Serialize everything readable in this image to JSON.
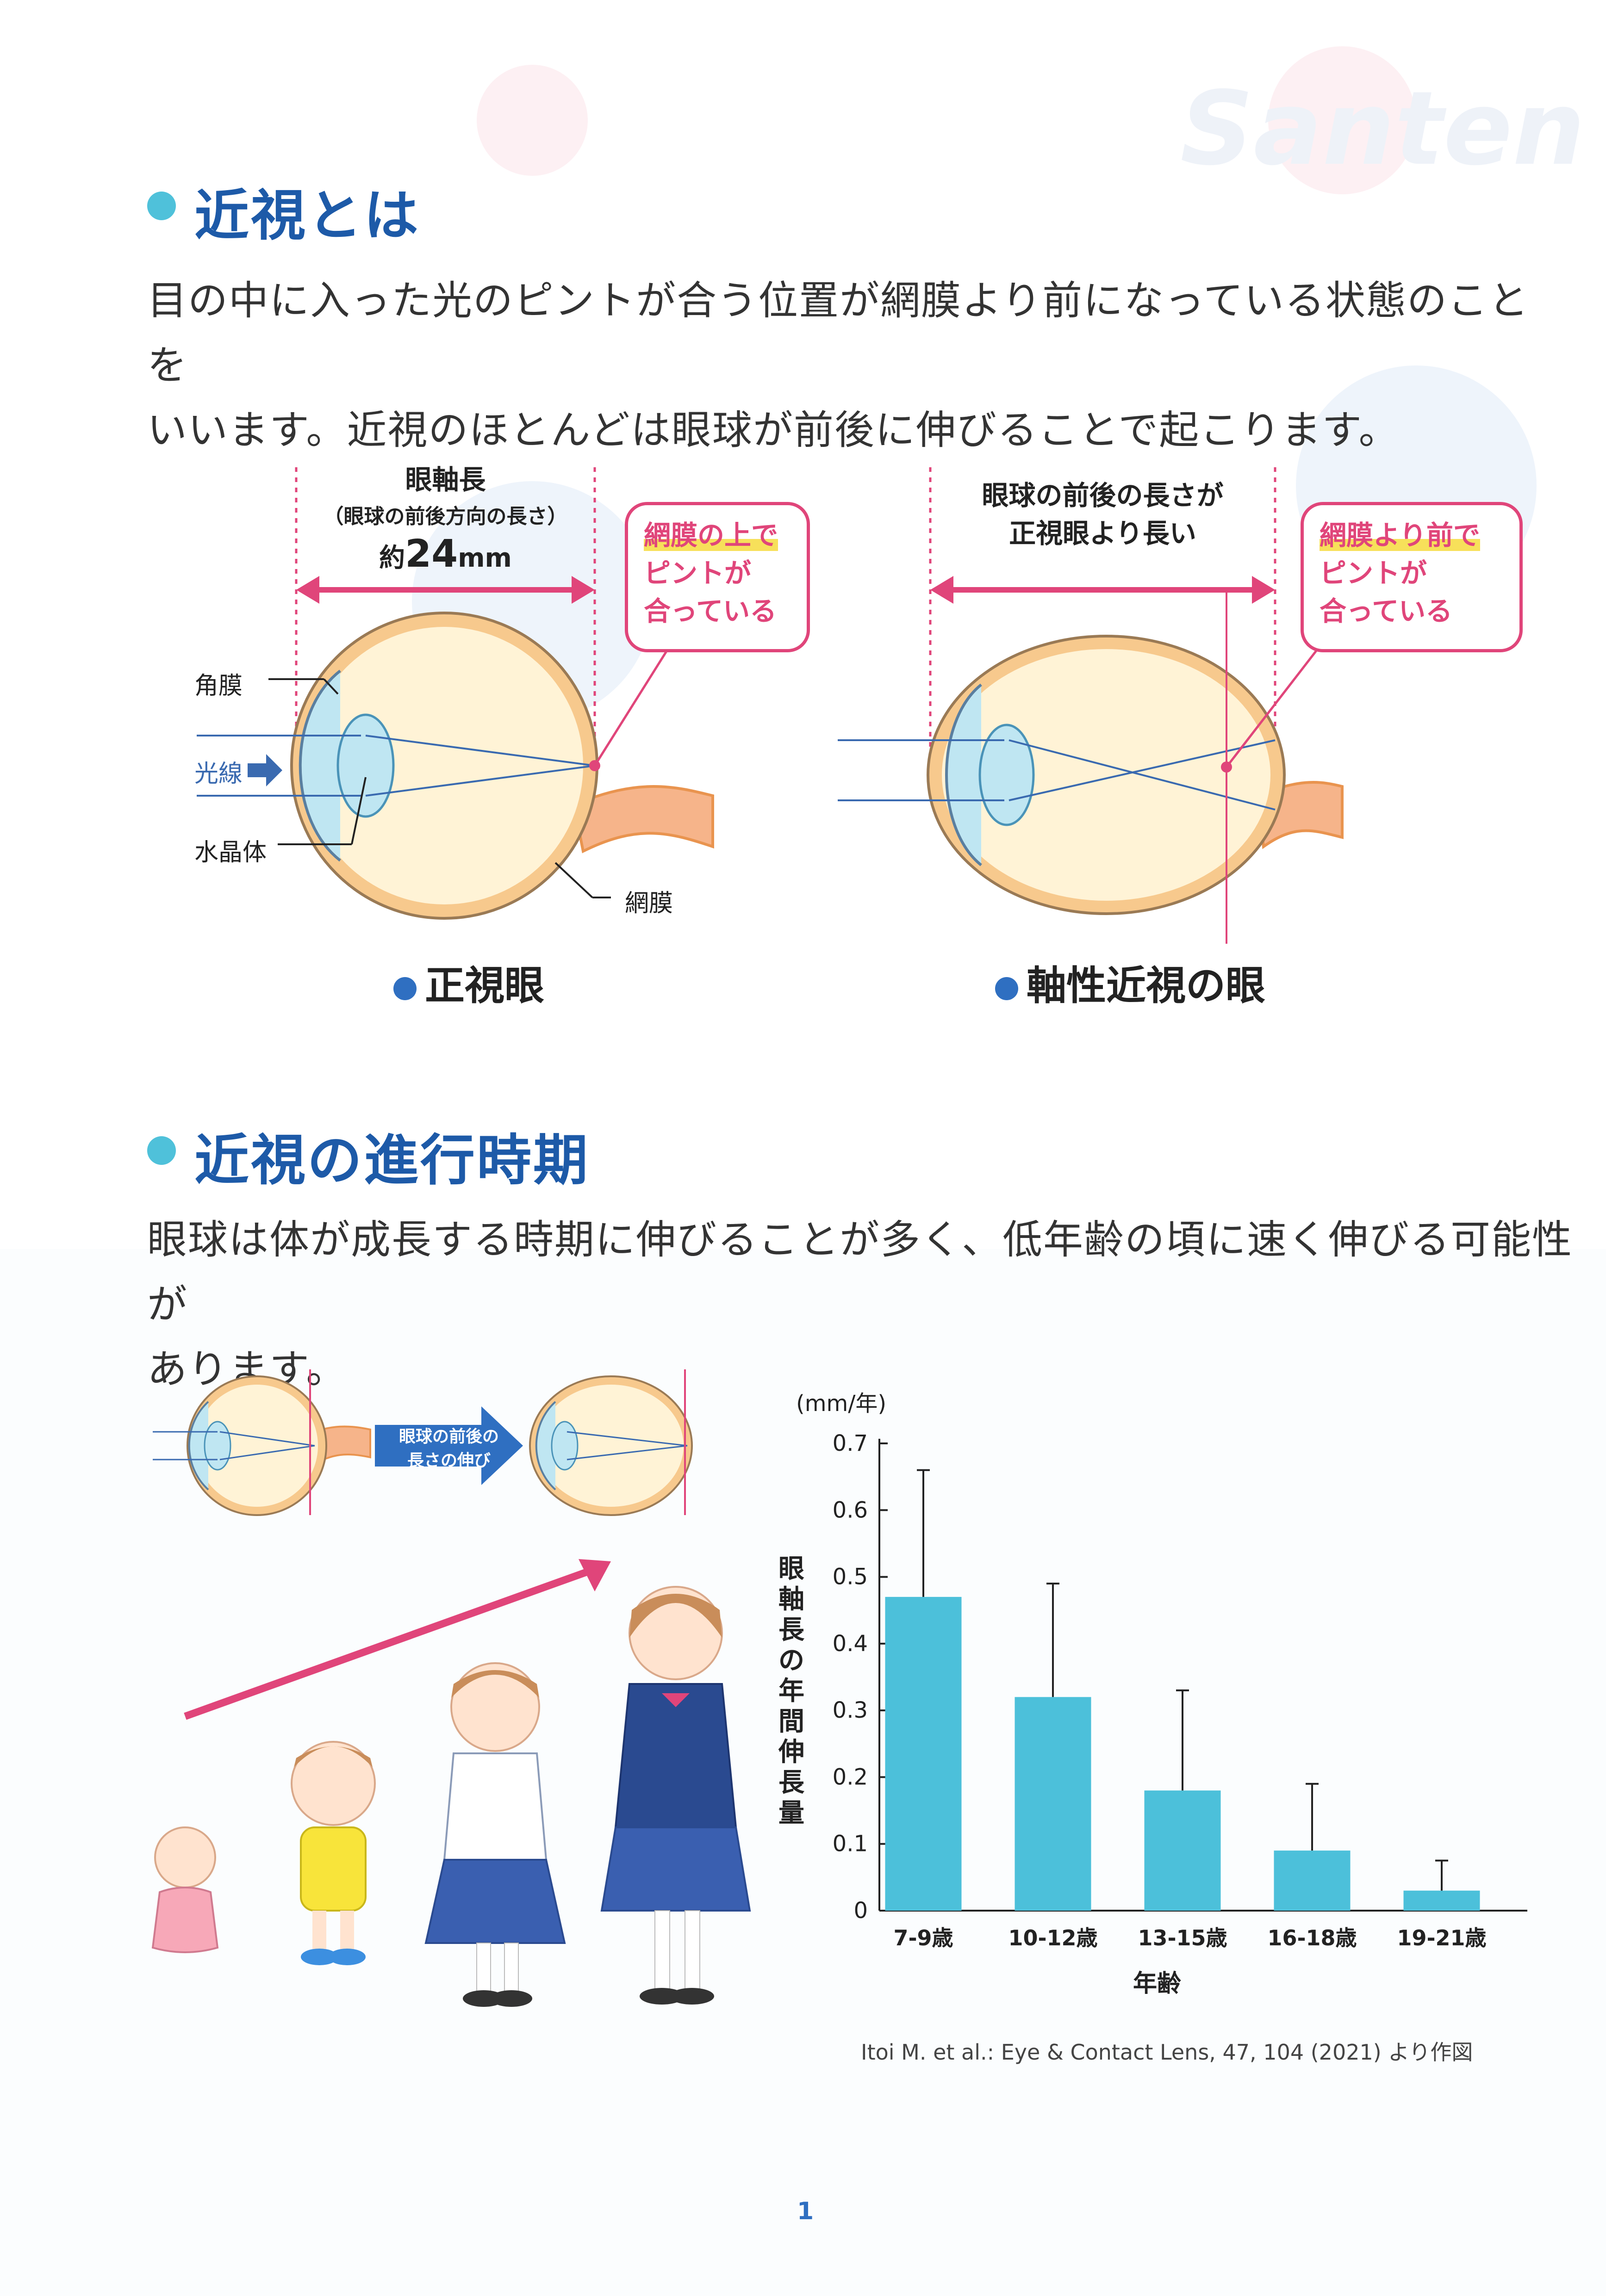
{
  "brand_watermark": "Santen",
  "section1": {
    "heading": "近視とは",
    "para_line1": "目の中に入った光のピントが合う位置が網膜より前になっている状態のことを",
    "para_line2": "いいます。近視のほとんどは眼球が前後に伸びることで起こります。"
  },
  "normal_eye": {
    "dim_title": "眼軸長",
    "dim_sub": "（眼球の前後方向の長さ）",
    "dim_value_prefix": "約",
    "dim_value": "24",
    "dim_unit": "mm",
    "callout_hl": "網膜の上で",
    "callout_line2": "ピントが",
    "callout_line3": "合っている",
    "label_cornea": "角膜",
    "label_light": "光線",
    "label_lens": "水晶体",
    "label_retina": "網膜",
    "caption": "正視眼"
  },
  "myopic_eye": {
    "dim_line1": "眼球の前後の長さが",
    "dim_line2": "正視眼より長い",
    "callout_hl": "網膜より前で",
    "callout_line2": "ピントが",
    "callout_line3": "合っている",
    "caption": "軸性近視の眼"
  },
  "section2": {
    "heading": "近視の進行時期",
    "para_line1": "眼球は体が成長する時期に伸びることが多く、低年齢の頃に速く伸びる可能性が",
    "para_line2": "あります。"
  },
  "growth_arrow": {
    "line1": "眼球の前後の",
    "line2": "長さの伸び"
  },
  "colors": {
    "heading_blue": "#1d5aa8",
    "accent_cyan": "#4fc1da",
    "accent_pink": "#e0457a",
    "bar_color": "#4cc0da"
  },
  "chart_data": {
    "type": "bar",
    "unit_label": "(mm/年)",
    "ylabel": "眼軸長の年間伸長量",
    "xlabel": "年齢",
    "ylim": [
      0,
      0.7
    ],
    "yticks": [
      "0",
      "0.1",
      "0.2",
      "0.3",
      "0.4",
      "0.5",
      "0.6",
      "0.7"
    ],
    "categories": [
      "7-9歳",
      "10-12歳",
      "13-15歳",
      "16-18歳",
      "19-21歳"
    ],
    "values": [
      0.47,
      0.32,
      0.18,
      0.09,
      0.03
    ],
    "error_upper": [
      0.66,
      0.49,
      0.33,
      0.19,
      0.075
    ]
  },
  "citation": "Itoi M. et al.: Eye & Contact Lens, 47, 104 (2021) より作図",
  "page_number": "1"
}
